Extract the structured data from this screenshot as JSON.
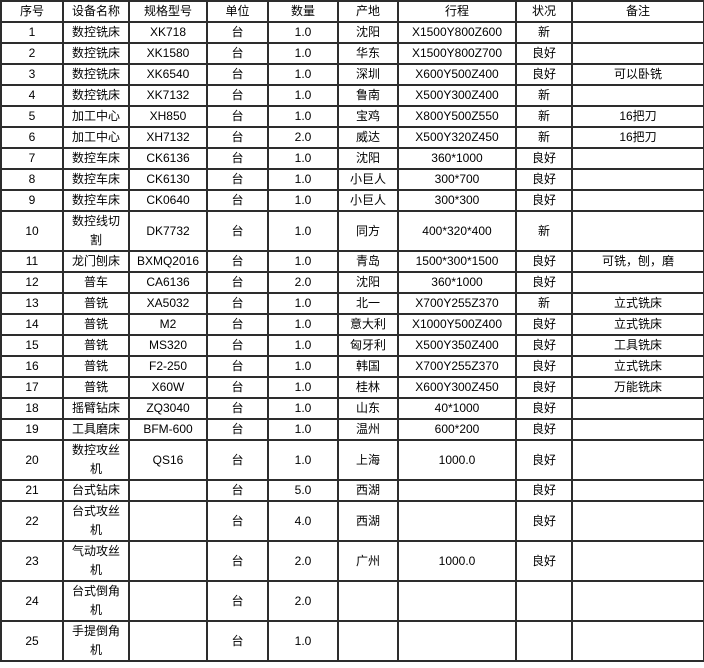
{
  "colors": {
    "border": "#2d2d2d",
    "text": "#000000",
    "background": "#ffffff"
  },
  "table": {
    "columns": [
      "序号",
      "设备名称",
      "规格型号",
      "单位",
      "数量",
      "产地",
      "行程",
      "状况",
      "备注"
    ],
    "rows": [
      [
        "1",
        "数控铣床",
        "XK718",
        "台",
        "1.0",
        "沈阳",
        "X1500Y800Z600",
        "新",
        ""
      ],
      [
        "2",
        "数控铣床",
        "XK1580",
        "台",
        "1.0",
        "华东",
        "X1500Y800Z700",
        "良好",
        ""
      ],
      [
        "3",
        "数控铣床",
        "XK6540",
        "台",
        "1.0",
        "深圳",
        "X600Y500Z400",
        "良好",
        "可以卧铣"
      ],
      [
        "4",
        "数控铣床",
        "XK7132",
        "台",
        "1.0",
        "鲁南",
        "X500Y300Z400",
        "新",
        ""
      ],
      [
        "5",
        "加工中心",
        "XH850",
        "台",
        "1.0",
        "宝鸡",
        "X800Y500Z550",
        "新",
        "16把刀"
      ],
      [
        "6",
        "加工中心",
        "XH7132",
        "台",
        "2.0",
        "威达",
        "X500Y320Z450",
        "新",
        "16把刀"
      ],
      [
        "7",
        "数控车床",
        "CK6136",
        "台",
        "1.0",
        "沈阳",
        "360*1000",
        "良好",
        ""
      ],
      [
        "8",
        "数控车床",
        "CK6130",
        "台",
        "1.0",
        "小巨人",
        "300*700",
        "良好",
        ""
      ],
      [
        "9",
        "数控车床",
        "CK0640",
        "台",
        "1.0",
        "小巨人",
        "300*300",
        "良好",
        ""
      ],
      [
        "10",
        "数控线切割",
        "DK7732",
        "台",
        "1.0",
        "同方",
        "400*320*400",
        "新",
        ""
      ],
      [
        "11",
        "龙门刨床",
        "BXMQ2016",
        "台",
        "1.0",
        "青岛",
        "1500*300*1500",
        "良好",
        "可铣，刨，磨"
      ],
      [
        "12",
        "普车",
        "CA6136",
        "台",
        "2.0",
        "沈阳",
        "360*1000",
        "良好",
        ""
      ],
      [
        "13",
        "普铣",
        "XA5032",
        "台",
        "1.0",
        "北一",
        "X700Y255Z370",
        "新",
        "立式铣床"
      ],
      [
        "14",
        "普铣",
        "M2",
        "台",
        "1.0",
        "意大利",
        "X1000Y500Z400",
        "良好",
        "立式铣床"
      ],
      [
        "15",
        "普铣",
        "MS320",
        "台",
        "1.0",
        "匈牙利",
        "X500Y350Z400",
        "良好",
        "工具铣床"
      ],
      [
        "16",
        "普铣",
        "F2-250",
        "台",
        "1.0",
        "韩国",
        "X700Y255Z370",
        "良好",
        "立式铣床"
      ],
      [
        "17",
        "普铣",
        "X60W",
        "台",
        "1.0",
        "桂林",
        "X600Y300Z450",
        "良好",
        "万能铣床"
      ],
      [
        "18",
        "摇臂钻床",
        "ZQ3040",
        "台",
        "1.0",
        "山东",
        "40*1000",
        "良好",
        ""
      ],
      [
        "19",
        "工具磨床",
        "BFM-600",
        "台",
        "1.0",
        "温州",
        "600*200",
        "良好",
        ""
      ],
      [
        "20",
        "数控攻丝机",
        "QS16",
        "台",
        "1.0",
        "上海",
        "1000.0",
        "良好",
        ""
      ],
      [
        "21",
        "台式钻床",
        "",
        "台",
        "5.0",
        "西湖",
        "",
        "良好",
        ""
      ],
      [
        "22",
        "台式攻丝机",
        "",
        "台",
        "4.0",
        "西湖",
        "",
        "良好",
        ""
      ],
      [
        "23",
        "气动攻丝机",
        "",
        "台",
        "2.0",
        "广州",
        "1000.0",
        "良好",
        ""
      ],
      [
        "24",
        "台式倒角机",
        "",
        "台",
        "2.0",
        "",
        "",
        "",
        ""
      ],
      [
        "25",
        "手提倒角机",
        "",
        "台",
        "1.0",
        "",
        "",
        "",
        ""
      ]
    ]
  }
}
